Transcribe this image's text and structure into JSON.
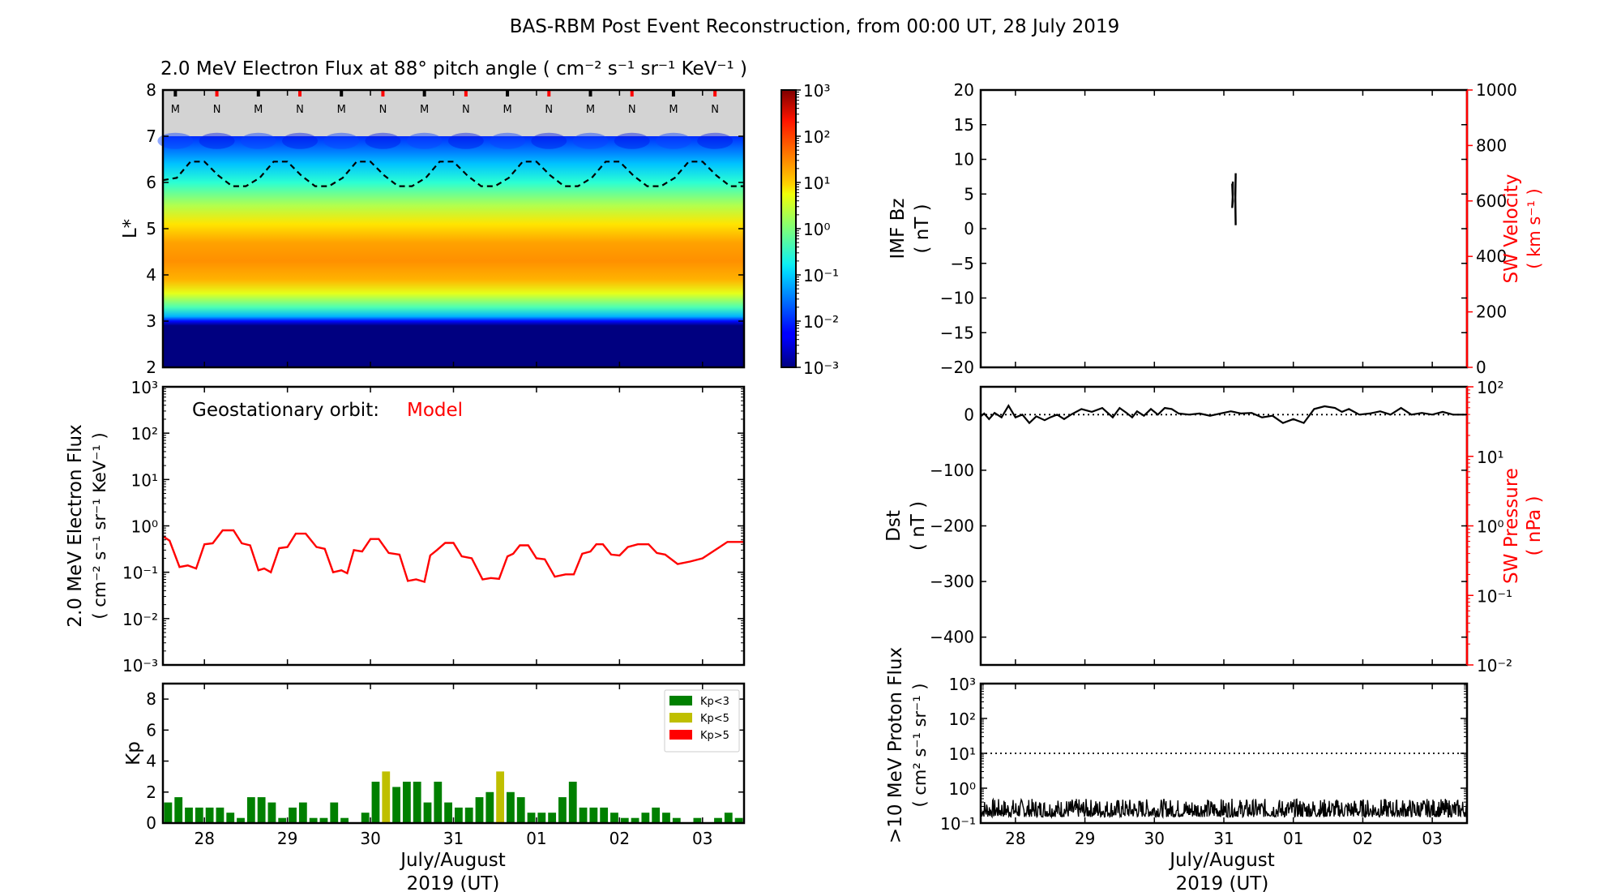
{
  "figure_title": "BAS-RBM Post Event Reconstruction, from 00:00 UT, 28 July 2019",
  "chart_data": [
    {
      "id": "heatmap",
      "type": "heatmap",
      "title": "2.0 MeV Electron Flux at 88° pitch angle ( cm⁻² s⁻¹ sr⁻¹ KeV⁻¹ )",
      "ylabel": "L*",
      "ylim": [
        2,
        8
      ],
      "yticks": [
        "2",
        "3",
        "4",
        "5",
        "6",
        "7",
        "8"
      ],
      "xlim_days": [
        0,
        7
      ],
      "colorbar": {
        "scale": "log",
        "range": [
          0.001,
          1000
        ],
        "ticks": [
          "10⁻³",
          "10⁻²",
          "10⁻¹",
          "10⁰",
          "10¹",
          "10²",
          "10³"
        ],
        "colormap": "jet"
      },
      "no_data_region": {
        "L_from": 7,
        "L_to": 8,
        "color": "#d3d3d3"
      },
      "local_time_markers": [
        {
          "label": "M",
          "day": 0.1,
          "color": "#000000"
        },
        {
          "label": "N",
          "day": 0.6,
          "color": "#ff0000"
        },
        {
          "label": "M",
          "day": 1.1,
          "color": "#000000"
        },
        {
          "label": "N",
          "day": 1.6,
          "color": "#ff0000"
        },
        {
          "label": "M",
          "day": 2.1,
          "color": "#000000"
        },
        {
          "label": "N",
          "day": 2.6,
          "color": "#ff0000"
        },
        {
          "label": "M",
          "day": 3.1,
          "color": "#000000"
        },
        {
          "label": "N",
          "day": 3.6,
          "color": "#ff0000"
        },
        {
          "label": "M",
          "day": 4.1,
          "color": "#000000"
        },
        {
          "label": "N",
          "day": 4.6,
          "color": "#ff0000"
        },
        {
          "label": "M",
          "day": 5.1,
          "color": "#000000"
        },
        {
          "label": "N",
          "day": 5.6,
          "color": "#ff0000"
        },
        {
          "label": "M",
          "day": 6.1,
          "color": "#000000"
        },
        {
          "label": "N",
          "day": 6.6,
          "color": "#ff0000"
        }
      ],
      "flux_profile_log10_vs_L": [
        {
          "L": 2.0,
          "v": -3
        },
        {
          "L": 2.9,
          "v": -3
        },
        {
          "L": 3.0,
          "v": -2.2
        },
        {
          "L": 3.1,
          "v": -1.2
        },
        {
          "L": 3.3,
          "v": -0.3
        },
        {
          "L": 3.6,
          "v": 0.6
        },
        {
          "L": 3.9,
          "v": 1.2
        },
        {
          "L": 4.3,
          "v": 1.4
        },
        {
          "L": 4.7,
          "v": 1.3
        },
        {
          "L": 5.1,
          "v": 0.9
        },
        {
          "L": 5.5,
          "v": 0.3
        },
        {
          "L": 6.0,
          "v": -0.5
        },
        {
          "L": 6.4,
          "v": -1.1
        },
        {
          "L": 6.8,
          "v": -1.7
        },
        {
          "L": 7.0,
          "v": -2.0
        }
      ],
      "geo_orbit_L_dashed": [
        6.05,
        6.1,
        6.45,
        6.45,
        6.15,
        5.92,
        5.92,
        6.1,
        6.45,
        6.45,
        6.15,
        5.92,
        5.92,
        6.1,
        6.45,
        6.45,
        6.15,
        5.92,
        5.92,
        6.1,
        6.45,
        6.45,
        6.15,
        5.92,
        5.92,
        6.1,
        6.45,
        6.45,
        6.15,
        5.92,
        5.92,
        6.1,
        6.45,
        6.45,
        6.15,
        5.92,
        5.92,
        6.1,
        6.45,
        6.45,
        6.15,
        5.92,
        5.92
      ]
    },
    {
      "id": "geo",
      "type": "line",
      "annotation": "Geostationary orbit:",
      "annotation_model": "Model",
      "ylabel_line1": "2.0 MeV Electron Flux",
      "ylabel_line2": "( cm⁻² s⁻¹ sr⁻¹ KeV⁻¹ )",
      "scale": "log",
      "ylim": [
        0.001,
        1000
      ],
      "yticks": [
        "10⁻³",
        "10⁻²",
        "10⁻¹",
        "10⁰",
        "10¹",
        "10²",
        "10³"
      ],
      "series": [
        {
          "name": "Model",
          "color": "#ff0000",
          "x_days": [
            0,
            0.08,
            0.2,
            0.3,
            0.4,
            0.5,
            0.6,
            0.72,
            0.85,
            0.95,
            1.05,
            1.15,
            1.22,
            1.3,
            1.4,
            1.5,
            1.6,
            1.72,
            1.85,
            1.95,
            2.05,
            2.15,
            2.22,
            2.3,
            2.4,
            2.5,
            2.6,
            2.72,
            2.85,
            2.95,
            3.05,
            3.15,
            3.22,
            3.3,
            3.4,
            3.5,
            3.6,
            3.72,
            3.85,
            3.95,
            4.05,
            4.15,
            4.22,
            4.3,
            4.4,
            4.5,
            4.6,
            4.72,
            4.85,
            4.95,
            5.05,
            5.15,
            5.22,
            5.3,
            5.4,
            5.5,
            5.6,
            5.72,
            5.85,
            5.95,
            6.05,
            6.2,
            6.35,
            6.5,
            6.65,
            6.8,
            7.0
          ],
          "values": [
            0.6,
            0.48,
            0.13,
            0.14,
            0.12,
            0.4,
            0.42,
            0.8,
            0.8,
            0.42,
            0.38,
            0.11,
            0.12,
            0.1,
            0.33,
            0.35,
            0.68,
            0.68,
            0.35,
            0.32,
            0.1,
            0.11,
            0.095,
            0.3,
            0.28,
            0.52,
            0.52,
            0.26,
            0.24,
            0.065,
            0.07,
            0.062,
            0.23,
            0.3,
            0.43,
            0.43,
            0.22,
            0.2,
            0.07,
            0.075,
            0.072,
            0.22,
            0.25,
            0.38,
            0.38,
            0.2,
            0.19,
            0.08,
            0.09,
            0.09,
            0.25,
            0.28,
            0.4,
            0.4,
            0.24,
            0.23,
            0.35,
            0.4,
            0.4,
            0.26,
            0.24,
            0.15,
            0.17,
            0.2,
            0.3,
            0.45,
            0.45
          ]
        }
      ]
    },
    {
      "id": "kp",
      "type": "bar",
      "ylabel": "Kp",
      "ylim": [
        0,
        9
      ],
      "yticks": [
        "0",
        "2",
        "4",
        "6",
        "8"
      ],
      "bar_interval_hours": 3,
      "values": [
        1.33,
        1.67,
        1,
        1,
        1,
        1,
        0.67,
        0.33,
        1.67,
        1.67,
        1.33,
        0.33,
        1,
        1.33,
        0.33,
        0.33,
        1.33,
        0.33,
        0,
        0.67,
        2.67,
        3.33,
        2.33,
        2.67,
        2.67,
        1.33,
        2.67,
        1.33,
        1,
        1,
        1.67,
        2,
        3.33,
        2,
        1.67,
        0.67,
        0.67,
        0.67,
        1.67,
        2.67,
        1,
        1,
        1,
        0.67,
        0.33,
        0.33,
        0.67,
        1,
        0.67,
        0.33,
        0,
        0.33,
        0,
        0.33,
        0.67,
        0.33
      ],
      "legend": [
        {
          "label": "Kp<3",
          "color": "#008000",
          "max": 3
        },
        {
          "label": "Kp<5",
          "color": "#bfbf00",
          "max": 5
        },
        {
          "label": "Kp>5",
          "color": "#ff0000",
          "max": 10
        }
      ],
      "legend_position": "top-right"
    },
    {
      "id": "bz",
      "type": "line",
      "ylabel_line1": "IMF Bz",
      "ylabel_line2": "( nT )",
      "ylim": [
        -20,
        20
      ],
      "yticks": [
        "−20",
        "−15",
        "−10",
        "−5",
        "0",
        "5",
        "10",
        "15",
        "20"
      ],
      "right_axis": {
        "label_line1": "SW Velocity",
        "label_line2": "( km s⁻¹ )",
        "ylim": [
          0,
          1000
        ],
        "ticks": [
          "0",
          "200",
          "400",
          "600",
          "800",
          "1000"
        ],
        "color": "#ff0000"
      },
      "series": [
        {
          "name": "Bz a",
          "x_days": [
            3.62,
            3.63,
            3.62,
            3.63,
            3.63
          ],
          "values": [
            6.5,
            4,
            3,
            5,
            6.8
          ]
        },
        {
          "name": "Bz b",
          "x_days": [
            3.67,
            3.665,
            3.67,
            3.665,
            3.67
          ],
          "values": [
            8,
            4,
            0.5,
            5,
            7.5
          ]
        }
      ]
    },
    {
      "id": "dst",
      "type": "line",
      "ylabel_line1": "Dst",
      "ylabel_line2": "( nT )",
      "ylim": [
        -450,
        50
      ],
      "yticks": [
        "−400",
        "−300",
        "−200",
        "−100",
        "0"
      ],
      "right_axis": {
        "label_line1": "SW Pressure",
        "label_line2": "( nPa )",
        "scale": "log",
        "ylim": [
          0.01,
          100
        ],
        "ticks": [
          "10⁻²",
          "10⁻¹",
          "10⁰",
          "10¹",
          "10²"
        ],
        "color": "#ff0000"
      },
      "reference_line": 0,
      "series": [
        {
          "name": "Dst",
          "x_days": [
            0,
            0.05,
            0.12,
            0.2,
            0.3,
            0.4,
            0.5,
            0.6,
            0.7,
            0.8,
            0.92,
            1.0,
            1.1,
            1.2,
            1.3,
            1.45,
            1.6,
            1.75,
            1.9,
            2.0,
            2.1,
            2.18,
            2.25,
            2.35,
            2.45,
            2.55,
            2.65,
            2.75,
            2.85,
            3.0,
            3.15,
            3.3,
            3.45,
            3.6,
            3.75,
            3.9,
            4.05,
            4.2,
            4.35,
            4.5,
            4.65,
            4.8,
            4.95,
            5.1,
            5.2,
            5.3,
            5.45,
            5.6,
            5.75,
            5.9,
            6.05,
            6.2,
            6.35,
            6.5,
            6.65,
            6.8,
            6.9,
            7.0
          ],
          "values": [
            -3,
            2,
            -8,
            3,
            -5,
            16,
            -5,
            0,
            -15,
            -3,
            -10,
            -5,
            0,
            -8,
            0,
            10,
            5,
            12,
            -5,
            12,
            3,
            -5,
            6,
            -2,
            10,
            0,
            12,
            10,
            2,
            0,
            2,
            -2,
            2,
            6,
            2,
            3,
            -5,
            -2,
            -15,
            -8,
            -15,
            10,
            15,
            12,
            5,
            10,
            0,
            2,
            6,
            0,
            12,
            0,
            3,
            0,
            5,
            0,
            0,
            0
          ]
        }
      ]
    },
    {
      "id": "proton",
      "type": "line",
      "ylabel_line1": ">10 MeV Proton Flux",
      "ylabel_line2": "( cm² s⁻¹ sr⁻¹ )",
      "scale": "log",
      "ylim": [
        0.1,
        1000
      ],
      "yticks": [
        "10⁻¹",
        "10⁰",
        "10¹",
        "10²",
        "10³"
      ],
      "threshold": 10,
      "series_note": "noisy background between 0.15 and 0.5",
      "range": [
        0.15,
        0.5
      ]
    }
  ],
  "xaxis": {
    "tick_labels": [
      "28",
      "29",
      "30",
      "31",
      "01",
      "02",
      "03"
    ],
    "tick_days": [
      0.5,
      1.5,
      2.5,
      3.5,
      4.5,
      5.5,
      6.5
    ],
    "label_line1": "July/August",
    "label_line2": "2019 (UT)"
  }
}
